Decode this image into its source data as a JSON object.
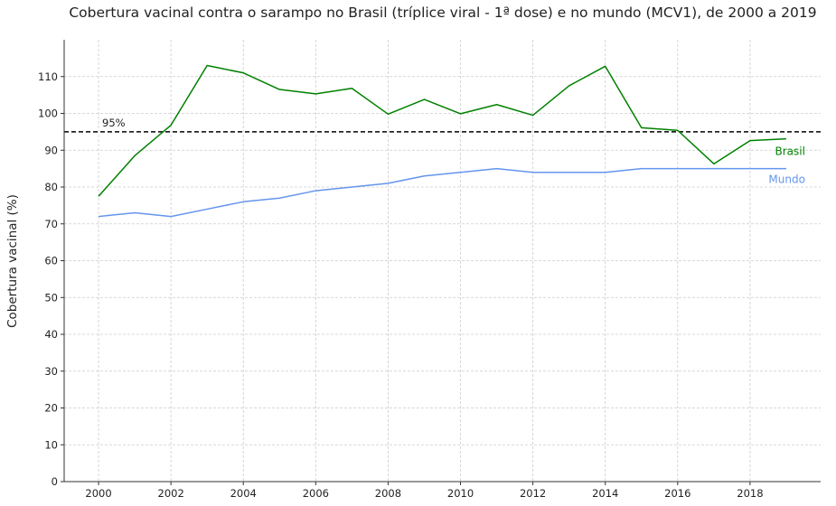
{
  "chart_data": {
    "type": "line",
    "title": "Cobertura vacinal contra o sarampo no Brasil (tríplice viral - 1ª dose) e no mundo (MCV1), de 2000 a 2019",
    "xlabel": "",
    "ylabel": "Cobertura vacinal (%)",
    "x": [
      2000,
      2001,
      2002,
      2003,
      2004,
      2005,
      2006,
      2007,
      2008,
      2009,
      2010,
      2011,
      2012,
      2013,
      2014,
      2015,
      2016,
      2017,
      2018,
      2019
    ],
    "xlim": [
      1999.05,
      2019.95
    ],
    "ylim": [
      0,
      120
    ],
    "xticks": [
      2000,
      2002,
      2004,
      2006,
      2008,
      2010,
      2012,
      2014,
      2016,
      2018
    ],
    "yticks": [
      0,
      10,
      20,
      30,
      40,
      50,
      60,
      70,
      80,
      90,
      100,
      110
    ],
    "grid": true,
    "series": [
      {
        "name": "Brasil",
        "color": "#008000",
        "values": [
          77.5,
          88.5,
          96.8,
          113.0,
          111.0,
          106.5,
          105.3,
          106.8,
          99.8,
          103.8,
          99.9,
          102.4,
          99.5,
          107.5,
          112.8,
          96.1,
          95.4,
          86.3,
          92.6,
          93.1
        ]
      },
      {
        "name": "Mundo",
        "color": "#6495ED",
        "values": [
          72,
          73,
          72,
          74,
          76,
          77,
          79,
          80,
          81,
          83,
          84,
          85,
          84,
          84,
          84,
          85,
          85,
          85,
          85,
          85
        ]
      }
    ],
    "reference_line": {
      "value": 95,
      "label": "95%",
      "color": "#000000",
      "style": "dashed"
    }
  }
}
